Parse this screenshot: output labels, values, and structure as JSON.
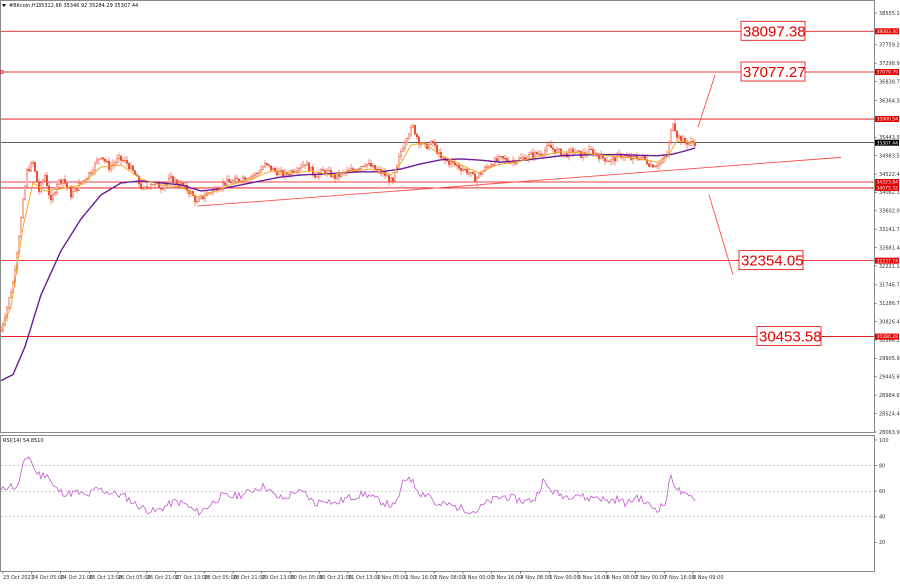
{
  "colors": {
    "candle": "#e8492e",
    "ema_fast": "#f5a623",
    "ma_slow": "#6a1b9a",
    "level": "#e30000",
    "trend": "#ff4d4d",
    "rsi": "#c05ad0",
    "current": "#000000"
  },
  "chart_data": [
    {
      "type": "candlestick",
      "title": "",
      "header": {
        "symbol": "#Bitcoin,H1",
        "ohlc": "35312.66  35346.92  35284.29  35307.44"
      },
      "y_ticks": [
        "38555.10",
        "37759.20",
        "37298.95",
        "36838.70",
        "36364.35",
        "35903.00",
        "35443.50",
        "34983.55",
        "34522.40",
        "34062.15",
        "33602.00",
        "33141.70",
        "32681.40",
        "32221.15",
        "31746.75",
        "31286.70",
        "30826.45",
        "30366.20",
        "29905.95",
        "29445.60",
        "28984.65",
        "28524.40",
        "28063.95"
      ],
      "ylim": [
        28063.95,
        38555.1
      ],
      "x_ticks": [
        "23 Oct 2023",
        "24 Oct 05:00",
        "24 Oct 21:00",
        "25 Oct 13:00",
        "26 Oct 05:00",
        "26 Oct 21:00",
        "27 Oct 13:00",
        "28 Oct 05:00",
        "28 Oct 21:00",
        "29 Oct 13:00",
        "30 Oct 05:00",
        "30 Oct 21:00",
        "31 Oct 13:00",
        "1 Nov 05:00",
        "1 Nov 16:00",
        "2 Nov 08:00",
        "3 Nov 00:00",
        "3 Nov 16:00",
        "4 Nov 08:00",
        "5 Nov 00:00",
        "5 Nov 16:00",
        "6 Nov 08:00",
        "7 Nov 00:00",
        "7 Nov 16:00",
        "8 Nov 09:00"
      ],
      "current_price": {
        "value": 35307.44,
        "label": "35307.44"
      },
      "levels": [
        {
          "value": 38097.38,
          "label": "38097.38",
          "tag": "38083.40"
        },
        {
          "value": 37077.27,
          "label": "37077.27",
          "tag": "37079.79"
        },
        {
          "value": 35900.0,
          "label": "",
          "tag": "35900.54"
        },
        {
          "value": 34323.84,
          "label": "",
          "tag": "34323.84"
        },
        {
          "value": 34175.0,
          "label": "",
          "tag": "34075.32"
        },
        {
          "value": 32354.05,
          "label": "32354.05",
          "tag": "32237.74"
        },
        {
          "value": 30453.58,
          "label": "30453.58",
          "tag": "30380.28"
        }
      ],
      "trendline": {
        "from": {
          "bar": 196,
          "price": 33720
        },
        "to": {
          "bar": 840,
          "price": 34940
        }
      },
      "forecast_arrows": [
        {
          "from": {
            "bar": 697,
            "price": 35700
          },
          "to": {
            "bar": 714,
            "price": 37000
          }
        },
        {
          "from": {
            "bar": 708,
            "price": 34000
          },
          "to": {
            "bar": 732,
            "price": 32000
          }
        }
      ],
      "price_keypoints": [
        [
          0,
          30600
        ],
        [
          6,
          31200
        ],
        [
          12,
          31800
        ],
        [
          20,
          33400
        ],
        [
          26,
          34600
        ],
        [
          32,
          34800
        ],
        [
          38,
          34100
        ],
        [
          44,
          34500
        ],
        [
          50,
          33800
        ],
        [
          56,
          34300
        ],
        [
          62,
          34400
        ],
        [
          70,
          34000
        ],
        [
          80,
          34300
        ],
        [
          90,
          34600
        ],
        [
          100,
          35000
        ],
        [
          108,
          34700
        ],
        [
          118,
          34900
        ],
        [
          126,
          34800
        ],
        [
          134,
          34500
        ],
        [
          142,
          34100
        ],
        [
          150,
          34300
        ],
        [
          160,
          34200
        ],
        [
          170,
          34400
        ],
        [
          180,
          34250
        ],
        [
          190,
          34050
        ],
        [
          196,
          33800
        ],
        [
          204,
          34000
        ],
        [
          214,
          34150
        ],
        [
          224,
          34300
        ],
        [
          234,
          34350
        ],
        [
          244,
          34450
        ],
        [
          254,
          34500
        ],
        [
          264,
          34750
        ],
        [
          274,
          34600
        ],
        [
          284,
          34500
        ],
        [
          294,
          34650
        ],
        [
          304,
          34800
        ],
        [
          314,
          34500
        ],
        [
          324,
          34600
        ],
        [
          334,
          34450
        ],
        [
          344,
          34550
        ],
        [
          354,
          34650
        ],
        [
          364,
          34800
        ],
        [
          374,
          34650
        ],
        [
          384,
          34500
        ],
        [
          392,
          34300
        ],
        [
          400,
          35100
        ],
        [
          406,
          35500
        ],
        [
          412,
          35700
        ],
        [
          418,
          35350
        ],
        [
          424,
          35200
        ],
        [
          432,
          35300
        ],
        [
          440,
          34900
        ],
        [
          450,
          34800
        ],
        [
          458,
          34700
        ],
        [
          466,
          34600
        ],
        [
          474,
          34400
        ],
        [
          482,
          34600
        ],
        [
          490,
          34800
        ],
        [
          500,
          34900
        ],
        [
          510,
          34850
        ],
        [
          520,
          34900
        ],
        [
          530,
          35000
        ],
        [
          540,
          35050
        ],
        [
          548,
          35200
        ],
        [
          556,
          35100
        ],
        [
          564,
          35000
        ],
        [
          572,
          35100
        ],
        [
          580,
          35000
        ],
        [
          590,
          35100
        ],
        [
          600,
          34950
        ],
        [
          610,
          34850
        ],
        [
          620,
          35000
        ],
        [
          630,
          34900
        ],
        [
          640,
          34950
        ],
        [
          650,
          34750
        ],
        [
          660,
          34800
        ],
        [
          666,
          35000
        ],
        [
          672,
          35850
        ],
        [
          676,
          35500
        ],
        [
          682,
          35350
        ],
        [
          688,
          35300
        ],
        [
          695,
          35310
        ]
      ],
      "ema_keypoints": [
        [
          0,
          30650
        ],
        [
          10,
          31200
        ],
        [
          22,
          33200
        ],
        [
          32,
          34300
        ],
        [
          44,
          34100
        ],
        [
          60,
          34150
        ],
        [
          80,
          34250
        ],
        [
          100,
          34700
        ],
        [
          120,
          34750
        ],
        [
          140,
          34400
        ],
        [
          160,
          34250
        ],
        [
          180,
          34200
        ],
        [
          196,
          33950
        ],
        [
          210,
          34050
        ],
        [
          230,
          34250
        ],
        [
          250,
          34400
        ],
        [
          270,
          34600
        ],
        [
          290,
          34550
        ],
        [
          310,
          34600
        ],
        [
          330,
          34500
        ],
        [
          350,
          34600
        ],
        [
          370,
          34650
        ],
        [
          390,
          34500
        ],
        [
          400,
          34800
        ],
        [
          410,
          35250
        ],
        [
          422,
          35300
        ],
        [
          440,
          35000
        ],
        [
          460,
          34750
        ],
        [
          478,
          34550
        ],
        [
          496,
          34750
        ],
        [
          520,
          34850
        ],
        [
          540,
          34980
        ],
        [
          560,
          35080
        ],
        [
          580,
          35050
        ],
        [
          600,
          35000
        ],
        [
          620,
          34950
        ],
        [
          640,
          34900
        ],
        [
          656,
          34820
        ],
        [
          666,
          34950
        ],
        [
          676,
          35350
        ],
        [
          688,
          35320
        ],
        [
          695,
          35300
        ]
      ],
      "ma_keypoints": [
        [
          0,
          29350
        ],
        [
          12,
          29500
        ],
        [
          24,
          30200
        ],
        [
          40,
          31500
        ],
        [
          60,
          32600
        ],
        [
          80,
          33400
        ],
        [
          100,
          34000
        ],
        [
          120,
          34300
        ],
        [
          140,
          34350
        ],
        [
          160,
          34300
        ],
        [
          180,
          34250
        ],
        [
          200,
          34100
        ],
        [
          220,
          34150
        ],
        [
          240,
          34250
        ],
        [
          260,
          34350
        ],
        [
          280,
          34450
        ],
        [
          300,
          34500
        ],
        [
          320,
          34520
        ],
        [
          340,
          34550
        ],
        [
          360,
          34580
        ],
        [
          380,
          34580
        ],
        [
          400,
          34650
        ],
        [
          420,
          34780
        ],
        [
          440,
          34880
        ],
        [
          460,
          34900
        ],
        [
          480,
          34870
        ],
        [
          500,
          34820
        ],
        [
          520,
          34860
        ],
        [
          540,
          34920
        ],
        [
          560,
          34980
        ],
        [
          580,
          35000
        ],
        [
          600,
          35010
        ],
        [
          620,
          35010
        ],
        [
          640,
          34990
        ],
        [
          656,
          34980
        ],
        [
          672,
          35020
        ],
        [
          695,
          35180
        ]
      ]
    },
    {
      "type": "line",
      "title": "",
      "header": "RSI(14) 54.8510",
      "y_ticks": [
        "100",
        "80",
        "60",
        "40",
        "20"
      ],
      "ylim": [
        0,
        100
      ],
      "gridlines": [
        80,
        60,
        40
      ],
      "rsi_keypoints": [
        [
          0,
          60
        ],
        [
          8,
          65
        ],
        [
          16,
          62
        ],
        [
          22,
          80
        ],
        [
          28,
          88
        ],
        [
          34,
          76
        ],
        [
          40,
          72
        ],
        [
          46,
          74
        ],
        [
          52,
          64
        ],
        [
          58,
          60
        ],
        [
          66,
          58
        ],
        [
          76,
          59
        ],
        [
          86,
          56
        ],
        [
          96,
          62
        ],
        [
          104,
          60
        ],
        [
          114,
          58
        ],
        [
          124,
          56
        ],
        [
          134,
          50
        ],
        [
          144,
          46
        ],
        [
          154,
          44
        ],
        [
          164,
          48
        ],
        [
          174,
          52
        ],
        [
          184,
          50
        ],
        [
          194,
          44
        ],
        [
          200,
          44
        ],
        [
          210,
          50
        ],
        [
          220,
          56
        ],
        [
          232,
          56
        ],
        [
          244,
          58
        ],
        [
          254,
          62
        ],
        [
          264,
          64
        ],
        [
          274,
          56
        ],
        [
          284,
          54
        ],
        [
          294,
          60
        ],
        [
          304,
          58
        ],
        [
          314,
          50
        ],
        [
          324,
          54
        ],
        [
          334,
          50
        ],
        [
          344,
          54
        ],
        [
          354,
          56
        ],
        [
          364,
          58
        ],
        [
          374,
          54
        ],
        [
          386,
          50
        ],
        [
          394,
          48
        ],
        [
          402,
          66
        ],
        [
          408,
          72
        ],
        [
          414,
          64
        ],
        [
          420,
          58
        ],
        [
          428,
          58
        ],
        [
          436,
          48
        ],
        [
          444,
          50
        ],
        [
          454,
          48
        ],
        [
          464,
          46
        ],
        [
          474,
          44
        ],
        [
          484,
          50
        ],
        [
          494,
          54
        ],
        [
          504,
          56
        ],
        [
          514,
          54
        ],
        [
          524,
          52
        ],
        [
          534,
          54
        ],
        [
          542,
          68
        ],
        [
          548,
          62
        ],
        [
          556,
          58
        ],
        [
          566,
          56
        ],
        [
          576,
          58
        ],
        [
          586,
          54
        ],
        [
          596,
          56
        ],
        [
          606,
          52
        ],
        [
          616,
          54
        ],
        [
          626,
          50
        ],
        [
          636,
          56
        ],
        [
          646,
          50
        ],
        [
          656,
          46
        ],
        [
          664,
          50
        ],
        [
          670,
          72
        ],
        [
          676,
          62
        ],
        [
          684,
          56
        ],
        [
          695,
          54.85
        ]
      ]
    }
  ]
}
